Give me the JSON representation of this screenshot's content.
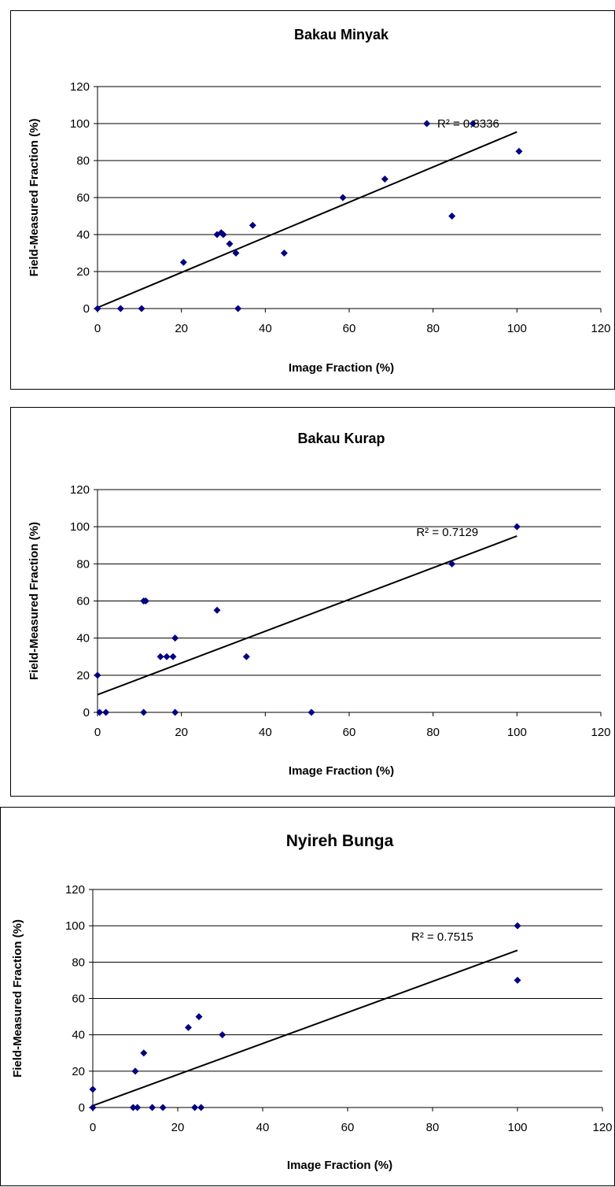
{
  "chart_data": [
    {
      "type": "scatter",
      "title": "Bakau Minyak",
      "xlabel": "Image Fraction (%)",
      "ylabel": "Field-Measured Fraction (%)",
      "xlim": [
        0,
        120
      ],
      "ylim": [
        0,
        120
      ],
      "x_ticks": [
        "0",
        "20",
        "40",
        "60",
        "80",
        "100",
        "120"
      ],
      "y_ticks": [
        "0",
        "20",
        "40",
        "60",
        "80",
        "100",
        "120"
      ],
      "grid": "horizontal",
      "marker_color": "#000080",
      "points": [
        {
          "x": 0,
          "y": 0
        },
        {
          "x": 5.5,
          "y": 0
        },
        {
          "x": 10.5,
          "y": 0
        },
        {
          "x": 20.5,
          "y": 25
        },
        {
          "x": 28.5,
          "y": 40
        },
        {
          "x": 29.5,
          "y": 41
        },
        {
          "x": 30,
          "y": 40
        },
        {
          "x": 31.5,
          "y": 35
        },
        {
          "x": 33,
          "y": 30
        },
        {
          "x": 33.5,
          "y": 0
        },
        {
          "x": 37,
          "y": 45
        },
        {
          "x": 44.5,
          "y": 30
        },
        {
          "x": 58.5,
          "y": 60
        },
        {
          "x": 68.5,
          "y": 70
        },
        {
          "x": 78.5,
          "y": 100
        },
        {
          "x": 84.5,
          "y": 50
        },
        {
          "x": 89.5,
          "y": 100
        },
        {
          "x": 100.5,
          "y": 85
        }
      ],
      "trendline": {
        "x": [
          0,
          100
        ],
        "y": [
          0.5,
          95.5
        ]
      },
      "annotation": {
        "text": "R² = 0.8336",
        "x": 81,
        "y": 100
      }
    },
    {
      "type": "scatter",
      "title": "Bakau Kurap",
      "xlabel": "Image Fraction (%)",
      "ylabel": "Field-Measured Fraction (%)",
      "xlim": [
        0,
        120
      ],
      "ylim": [
        0,
        120
      ],
      "x_ticks": [
        "0",
        "20",
        "40",
        "60",
        "80",
        "100",
        "120"
      ],
      "y_ticks": [
        "0",
        "20",
        "40",
        "60",
        "80",
        "100",
        "120"
      ],
      "grid": "horizontal",
      "marker_color": "#000080",
      "points": [
        {
          "x": 0,
          "y": 20
        },
        {
          "x": 0.5,
          "y": 0
        },
        {
          "x": 2,
          "y": 0
        },
        {
          "x": 11,
          "y": 0
        },
        {
          "x": 11,
          "y": 60
        },
        {
          "x": 11.5,
          "y": 60
        },
        {
          "x": 15,
          "y": 30
        },
        {
          "x": 16.5,
          "y": 30
        },
        {
          "x": 18,
          "y": 30
        },
        {
          "x": 18.5,
          "y": 40
        },
        {
          "x": 18.5,
          "y": 0
        },
        {
          "x": 28.5,
          "y": 55
        },
        {
          "x": 35.5,
          "y": 30
        },
        {
          "x": 51,
          "y": 0
        },
        {
          "x": 84.5,
          "y": 80
        },
        {
          "x": 100,
          "y": 100
        }
      ],
      "trendline": {
        "x": [
          0,
          100
        ],
        "y": [
          9.5,
          95
        ]
      },
      "annotation": {
        "text": "R² = 0.7129",
        "x": 76,
        "y": 97
      }
    },
    {
      "type": "scatter",
      "title": "Nyireh Bunga",
      "xlabel": "Image Fraction (%)",
      "ylabel": "Field-Measured Fraction (%)",
      "xlim": [
        0,
        120
      ],
      "ylim": [
        0,
        120
      ],
      "x_ticks": [
        "0",
        "20",
        "40",
        "60",
        "80",
        "100",
        "120"
      ],
      "y_ticks": [
        "0",
        "20",
        "40",
        "60",
        "80",
        "100",
        "120"
      ],
      "grid": "horizontal",
      "marker_color": "#000080",
      "points": [
        {
          "x": 0,
          "y": 10
        },
        {
          "x": 0,
          "y": 0
        },
        {
          "x": 9.5,
          "y": 0
        },
        {
          "x": 10,
          "y": 20
        },
        {
          "x": 10.5,
          "y": 0
        },
        {
          "x": 12,
          "y": 30
        },
        {
          "x": 14,
          "y": 0
        },
        {
          "x": 16.5,
          "y": 0
        },
        {
          "x": 22.5,
          "y": 44
        },
        {
          "x": 24,
          "y": 0
        },
        {
          "x": 25,
          "y": 50
        },
        {
          "x": 25.5,
          "y": 0
        },
        {
          "x": 30.5,
          "y": 40
        },
        {
          "x": 100,
          "y": 100
        },
        {
          "x": 100,
          "y": 70
        }
      ],
      "trendline": {
        "x": [
          0,
          100
        ],
        "y": [
          1,
          86.5
        ]
      },
      "annotation": {
        "text": "R² = 0.7515",
        "x": 75,
        "y": 94
      }
    }
  ]
}
